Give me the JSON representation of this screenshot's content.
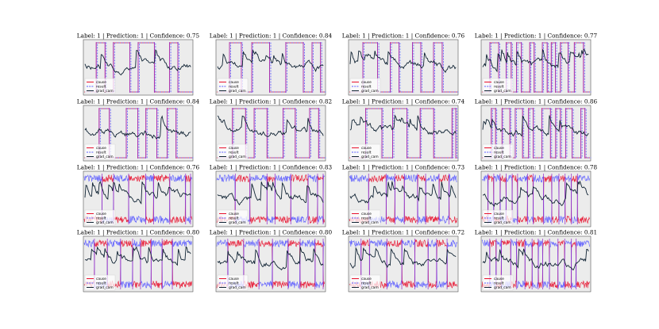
{
  "figure": {
    "legend_labels": [
      "cause",
      "result",
      "grad_cam"
    ],
    "colors": {
      "cause": "#e8112d",
      "result": "#5b5bff",
      "grad_cam": "#0f2233",
      "onoff": "#9932cc",
      "panel_bg": "#ececec"
    }
  },
  "chart_data": {
    "type": "line",
    "layout_grid": "4 rows x 4 columns",
    "legend_position": "lower-left",
    "grid": false,
    "series_names": [
      "cause",
      "result",
      "grad_cam"
    ],
    "panels": [
      {
        "title": "Label: 1 | Prediction: 1 | Confidence: 0.75",
        "style": "binary"
      },
      {
        "title": "Label: 1 | Prediction: 1 | Confidence: 0.84",
        "style": "binary"
      },
      {
        "title": "Label: 1 | Prediction: 1 | Confidence: 0.76",
        "style": "binary"
      },
      {
        "title": "Label: 1 | Prediction: 1 | Confidence: 0.77",
        "style": "binary"
      },
      {
        "title": "Label: 1 | Prediction: 1 | Confidence: 0.84",
        "style": "binary"
      },
      {
        "title": "Label: 1 | Prediction: 1 | Confidence: 0.82",
        "style": "binary"
      },
      {
        "title": "Label: 1 | Prediction: 1 | Confidence: 0.74",
        "style": "binary"
      },
      {
        "title": "Label: 1 | Prediction: 1 | Confidence: 0.86",
        "style": "binary"
      },
      {
        "title": "Label: 1 | Prediction: 1 | Confidence: 0.76",
        "style": "noisy"
      },
      {
        "title": "Label: 1 | Prediction: 1 | Confidence: 0.83",
        "style": "noisy"
      },
      {
        "title": "Label: 1 | Prediction: 1 | Confidence: 0.73",
        "style": "noisy"
      },
      {
        "title": "Label: 1 | Prediction: 1 | Confidence: 0.78",
        "style": "noisy"
      },
      {
        "title": "Label: 1 | Prediction: 1 | Confidence: 0.80",
        "style": "noisy"
      },
      {
        "title": "Label: 1 | Prediction: 1 | Confidence: 0.80",
        "style": "noisy"
      },
      {
        "title": "Label: 1 | Prediction: 1 | Confidence: 0.72",
        "style": "noisy"
      },
      {
        "title": "Label: 1 | Prediction: 1 | Confidence: 0.81",
        "style": "noisy"
      }
    ]
  }
}
